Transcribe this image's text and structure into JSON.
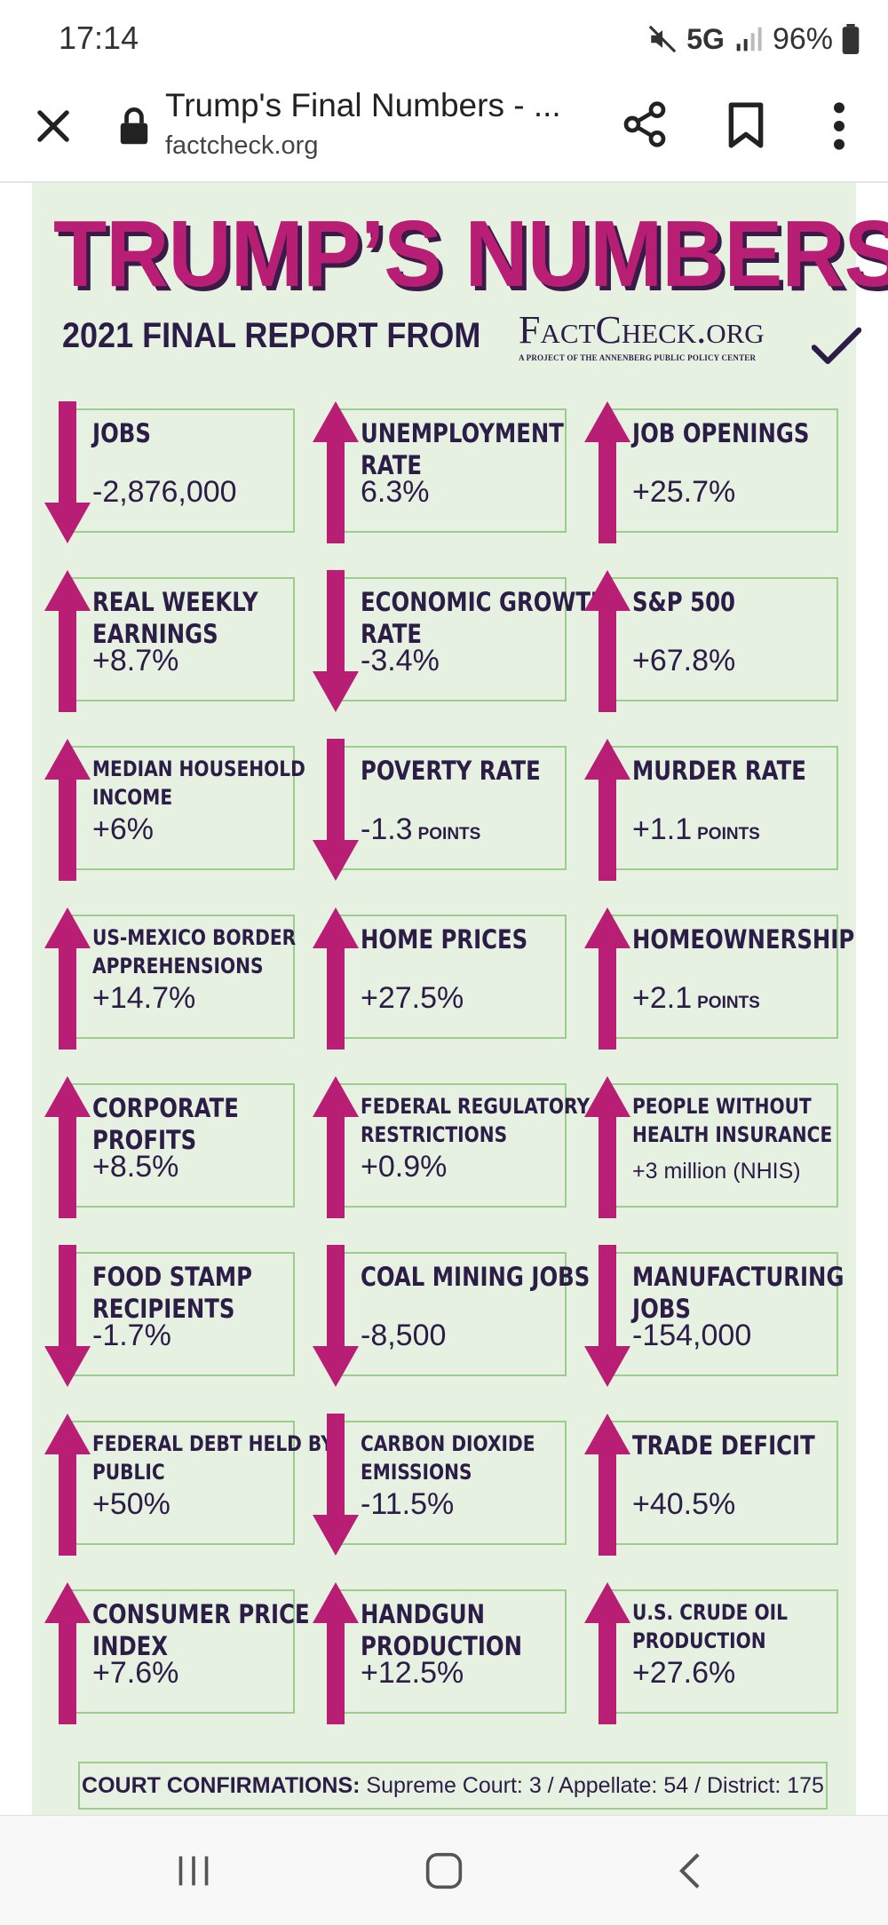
{
  "status_bar": {
    "time": "17:14",
    "network": "5G",
    "battery": "96%"
  },
  "browser": {
    "page_title": "Trump's Final Numbers - ...",
    "url": "factcheck.org"
  },
  "poster": {
    "title": "TRUMP’S NUMBERS",
    "subtitle": "2021 FINAL REPORT FROM",
    "brand_name": "FactCheck.org",
    "brand_tagline": "A Project of the Annenberg Public Policy Center",
    "accent_color": "#b81e74",
    "background_color": "#e6f1e2",
    "stats": [
      {
        "label": "Jobs",
        "value": "-2,876,000",
        "unit": "",
        "direction": "down"
      },
      {
        "label": "Unemployment Rate",
        "value": "6.3%",
        "unit": "",
        "direction": "up"
      },
      {
        "label": "Job Openings",
        "value": "+25.7%",
        "unit": "",
        "direction": "up"
      },
      {
        "label": "Real Weekly Earnings",
        "value": "+8.7%",
        "unit": "",
        "direction": "up"
      },
      {
        "label": "Economic Growth Rate",
        "value": "-3.4%",
        "unit": "",
        "direction": "down"
      },
      {
        "label": "S&P 500",
        "value": "+67.8%",
        "unit": "",
        "direction": "up"
      },
      {
        "label": "Median Household Income",
        "value": "+6%",
        "unit": "",
        "direction": "up"
      },
      {
        "label": "Poverty Rate",
        "value": "-1.3",
        "unit": "POINTS",
        "direction": "down"
      },
      {
        "label": "Murder Rate",
        "value": "+1.1",
        "unit": "POINTS",
        "direction": "up"
      },
      {
        "label": "US-Mexico Border Apprehensions",
        "value": "+14.7%",
        "unit": "",
        "direction": "up"
      },
      {
        "label": "Home Prices",
        "value": "+27.5%",
        "unit": "",
        "direction": "up"
      },
      {
        "label": "Homeownership",
        "value": "+2.1",
        "unit": "POINTS",
        "direction": "up"
      },
      {
        "label": "Corporate Profits",
        "value": "+8.5%",
        "unit": "",
        "direction": "up"
      },
      {
        "label": "Federal Regulatory Restrictions",
        "value": "+0.9%",
        "unit": "",
        "direction": "up"
      },
      {
        "label": "People Without Health Insurance",
        "value": "+3 million (NHIS)",
        "unit": "",
        "direction": "up"
      },
      {
        "label": "Food Stamp Recipients",
        "value": "-1.7%",
        "unit": "",
        "direction": "down"
      },
      {
        "label": "Coal Mining Jobs",
        "value": "-8,500",
        "unit": "",
        "direction": "down"
      },
      {
        "label": "Manufacturing Jobs",
        "value": "-154,000",
        "unit": "",
        "direction": "down"
      },
      {
        "label": "Federal Debt Held by Public",
        "value": "+50%",
        "unit": "",
        "direction": "up"
      },
      {
        "label": "Carbon Dioxide Emissions",
        "value": "-11.5%",
        "unit": "",
        "direction": "down"
      },
      {
        "label": "Trade Deficit",
        "value": "+40.5%",
        "unit": "",
        "direction": "up"
      },
      {
        "label": "Consumer Price Index",
        "value": "+7.6%",
        "unit": "",
        "direction": "up"
      },
      {
        "label": "Handgun Production",
        "value": "+12.5%",
        "unit": "",
        "direction": "up"
      },
      {
        "label": "U.S. Crude Oil Production",
        "value": "+27.6%",
        "unit": "",
        "direction": "up"
      }
    ],
    "court_confirmations": {
      "label": "COURT CONFIRMATIONS:",
      "text": "Supreme Court: 3 / Appellate: 54 / District: 175"
    }
  },
  "icons": {
    "close": "close-icon",
    "lock": "lock-icon",
    "share": "share-icon",
    "bookmark": "bookmark-icon",
    "more": "more-vert-icon",
    "recent_apps": "recent-apps-icon",
    "home": "home-icon",
    "back": "back-icon"
  }
}
